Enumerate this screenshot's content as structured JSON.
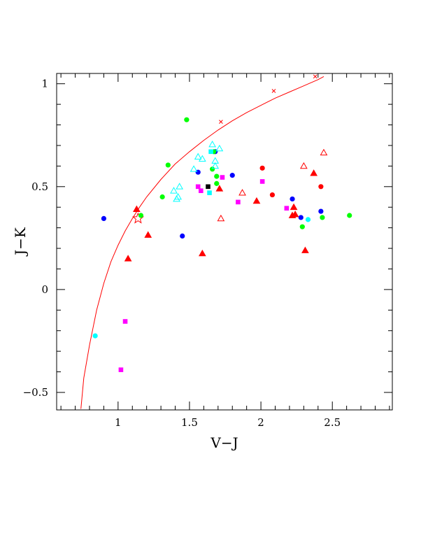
{
  "chart_data": {
    "type": "scatter",
    "xlabel": "V−J",
    "ylabel": "J−K",
    "xlim": [
      0.57,
      2.92
    ],
    "ylim": [
      -0.585,
      1.05
    ],
    "x_ticks": [
      {
        "value": 1,
        "label": "1"
      },
      {
        "value": 1.5,
        "label": "1.5"
      },
      {
        "value": 2,
        "label": "2"
      },
      {
        "value": 2.5,
        "label": "2.5"
      }
    ],
    "y_ticks": [
      {
        "value": 1,
        "label": "1"
      },
      {
        "value": 0.5,
        "label": "0.5"
      },
      {
        "value": 0,
        "label": "0"
      },
      {
        "value": -0.5,
        "label": "−0.5"
      }
    ],
    "x_minor_step": 0.1,
    "y_minor_step": 0.1,
    "grid": false,
    "colors": {
      "curve": "#ff0000",
      "blue": "#0000ff",
      "green": "#00ff00",
      "cyan": "#00ffff",
      "magenta": "#ff00ff",
      "red": "#ff0000",
      "black": "#000000"
    },
    "curve": {
      "color": "curve",
      "x": [
        0.74,
        0.76,
        0.8,
        0.85,
        0.9,
        0.95,
        1.0,
        1.05,
        1.1,
        1.15,
        1.2,
        1.3,
        1.4,
        1.5,
        1.6,
        1.7,
        1.8,
        1.9,
        2.0,
        2.1,
        2.2,
        2.3,
        2.4,
        2.44
      ],
      "y": [
        -0.58,
        -0.43,
        -0.27,
        -0.1,
        0.03,
        0.135,
        0.215,
        0.285,
        0.345,
        0.4,
        0.45,
        0.535,
        0.61,
        0.67,
        0.725,
        0.775,
        0.82,
        0.86,
        0.895,
        0.93,
        0.96,
        0.99,
        1.02,
        1.035
      ],
      "x_markers": [
        {
          "x": 1.72,
          "y": 0.815
        },
        {
          "x": 2.09,
          "y": 0.965
        },
        {
          "x": 2.38,
          "y": 1.035
        }
      ]
    },
    "series": [
      {
        "marker": "star-open",
        "color": "red",
        "points": [
          {
            "x": 1.14,
            "y": 0.345
          }
        ]
      },
      {
        "marker": "circle-filled",
        "color": "blue",
        "points": [
          {
            "x": 0.9,
            "y": 0.345
          },
          {
            "x": 1.45,
            "y": 0.26
          },
          {
            "x": 1.56,
            "y": 0.57
          },
          {
            "x": 1.68,
            "y": 0.67
          },
          {
            "x": 1.8,
            "y": 0.555
          },
          {
            "x": 2.22,
            "y": 0.44
          },
          {
            "x": 2.28,
            "y": 0.35
          },
          {
            "x": 2.42,
            "y": 0.38
          }
        ]
      },
      {
        "marker": "circle-filled",
        "color": "green",
        "points": [
          {
            "x": 1.16,
            "y": 0.36
          },
          {
            "x": 1.31,
            "y": 0.45
          },
          {
            "x": 1.35,
            "y": 0.605
          },
          {
            "x": 1.48,
            "y": 0.825
          },
          {
            "x": 1.66,
            "y": 0.585
          },
          {
            "x": 1.67,
            "y": 0.67
          },
          {
            "x": 1.69,
            "y": 0.55
          },
          {
            "x": 1.69,
            "y": 0.515
          },
          {
            "x": 2.29,
            "y": 0.305
          },
          {
            "x": 2.43,
            "y": 0.35
          },
          {
            "x": 2.62,
            "y": 0.36
          }
        ]
      },
      {
        "marker": "circle-filled",
        "color": "red",
        "points": [
          {
            "x": 2.01,
            "y": 0.59
          },
          {
            "x": 2.08,
            "y": 0.46
          },
          {
            "x": 2.42,
            "y": 0.5
          }
        ]
      },
      {
        "marker": "circle-filled",
        "color": "cyan",
        "points": [
          {
            "x": 0.84,
            "y": -0.225
          },
          {
            "x": 2.33,
            "y": 0.34
          }
        ]
      },
      {
        "marker": "square-filled",
        "color": "cyan",
        "points": [
          {
            "x": 1.65,
            "y": 0.67
          },
          {
            "x": 1.64,
            "y": 0.47
          }
        ]
      },
      {
        "marker": "square-filled",
        "color": "magenta",
        "points": [
          {
            "x": 1.02,
            "y": -0.39
          },
          {
            "x": 1.05,
            "y": -0.155
          },
          {
            "x": 1.56,
            "y": 0.5
          },
          {
            "x": 1.58,
            "y": 0.48
          },
          {
            "x": 1.73,
            "y": 0.545
          },
          {
            "x": 1.84,
            "y": 0.425
          },
          {
            "x": 2.01,
            "y": 0.525
          },
          {
            "x": 2.18,
            "y": 0.395
          }
        ]
      },
      {
        "marker": "square-filled",
        "color": "black",
        "points": [
          {
            "x": 1.63,
            "y": 0.5
          }
        ]
      },
      {
        "marker": "triangle-filled",
        "color": "red",
        "points": [
          {
            "x": 1.07,
            "y": 0.15
          },
          {
            "x": 1.13,
            "y": 0.39
          },
          {
            "x": 1.21,
            "y": 0.265
          },
          {
            "x": 1.59,
            "y": 0.175
          },
          {
            "x": 1.71,
            "y": 0.49
          },
          {
            "x": 1.97,
            "y": 0.43
          },
          {
            "x": 2.22,
            "y": 0.36
          },
          {
            "x": 2.23,
            "y": 0.4
          },
          {
            "x": 2.24,
            "y": 0.365
          },
          {
            "x": 2.31,
            "y": 0.19
          },
          {
            "x": 2.37,
            "y": 0.565
          }
        ]
      },
      {
        "marker": "triangle-open",
        "color": "red",
        "points": [
          {
            "x": 1.72,
            "y": 0.345
          },
          {
            "x": 1.87,
            "y": 0.47
          },
          {
            "x": 2.3,
            "y": 0.6
          },
          {
            "x": 2.44,
            "y": 0.665
          }
        ]
      },
      {
        "marker": "triangle-open",
        "color": "cyan",
        "points": [
          {
            "x": 1.39,
            "y": 0.48
          },
          {
            "x": 1.41,
            "y": 0.44
          },
          {
            "x": 1.42,
            "y": 0.45
          },
          {
            "x": 1.43,
            "y": 0.5
          },
          {
            "x": 1.53,
            "y": 0.585
          },
          {
            "x": 1.56,
            "y": 0.645
          },
          {
            "x": 1.59,
            "y": 0.635
          },
          {
            "x": 1.66,
            "y": 0.705
          },
          {
            "x": 1.68,
            "y": 0.625
          },
          {
            "x": 1.68,
            "y": 0.6
          },
          {
            "x": 1.71,
            "y": 0.685
          }
        ]
      }
    ]
  }
}
